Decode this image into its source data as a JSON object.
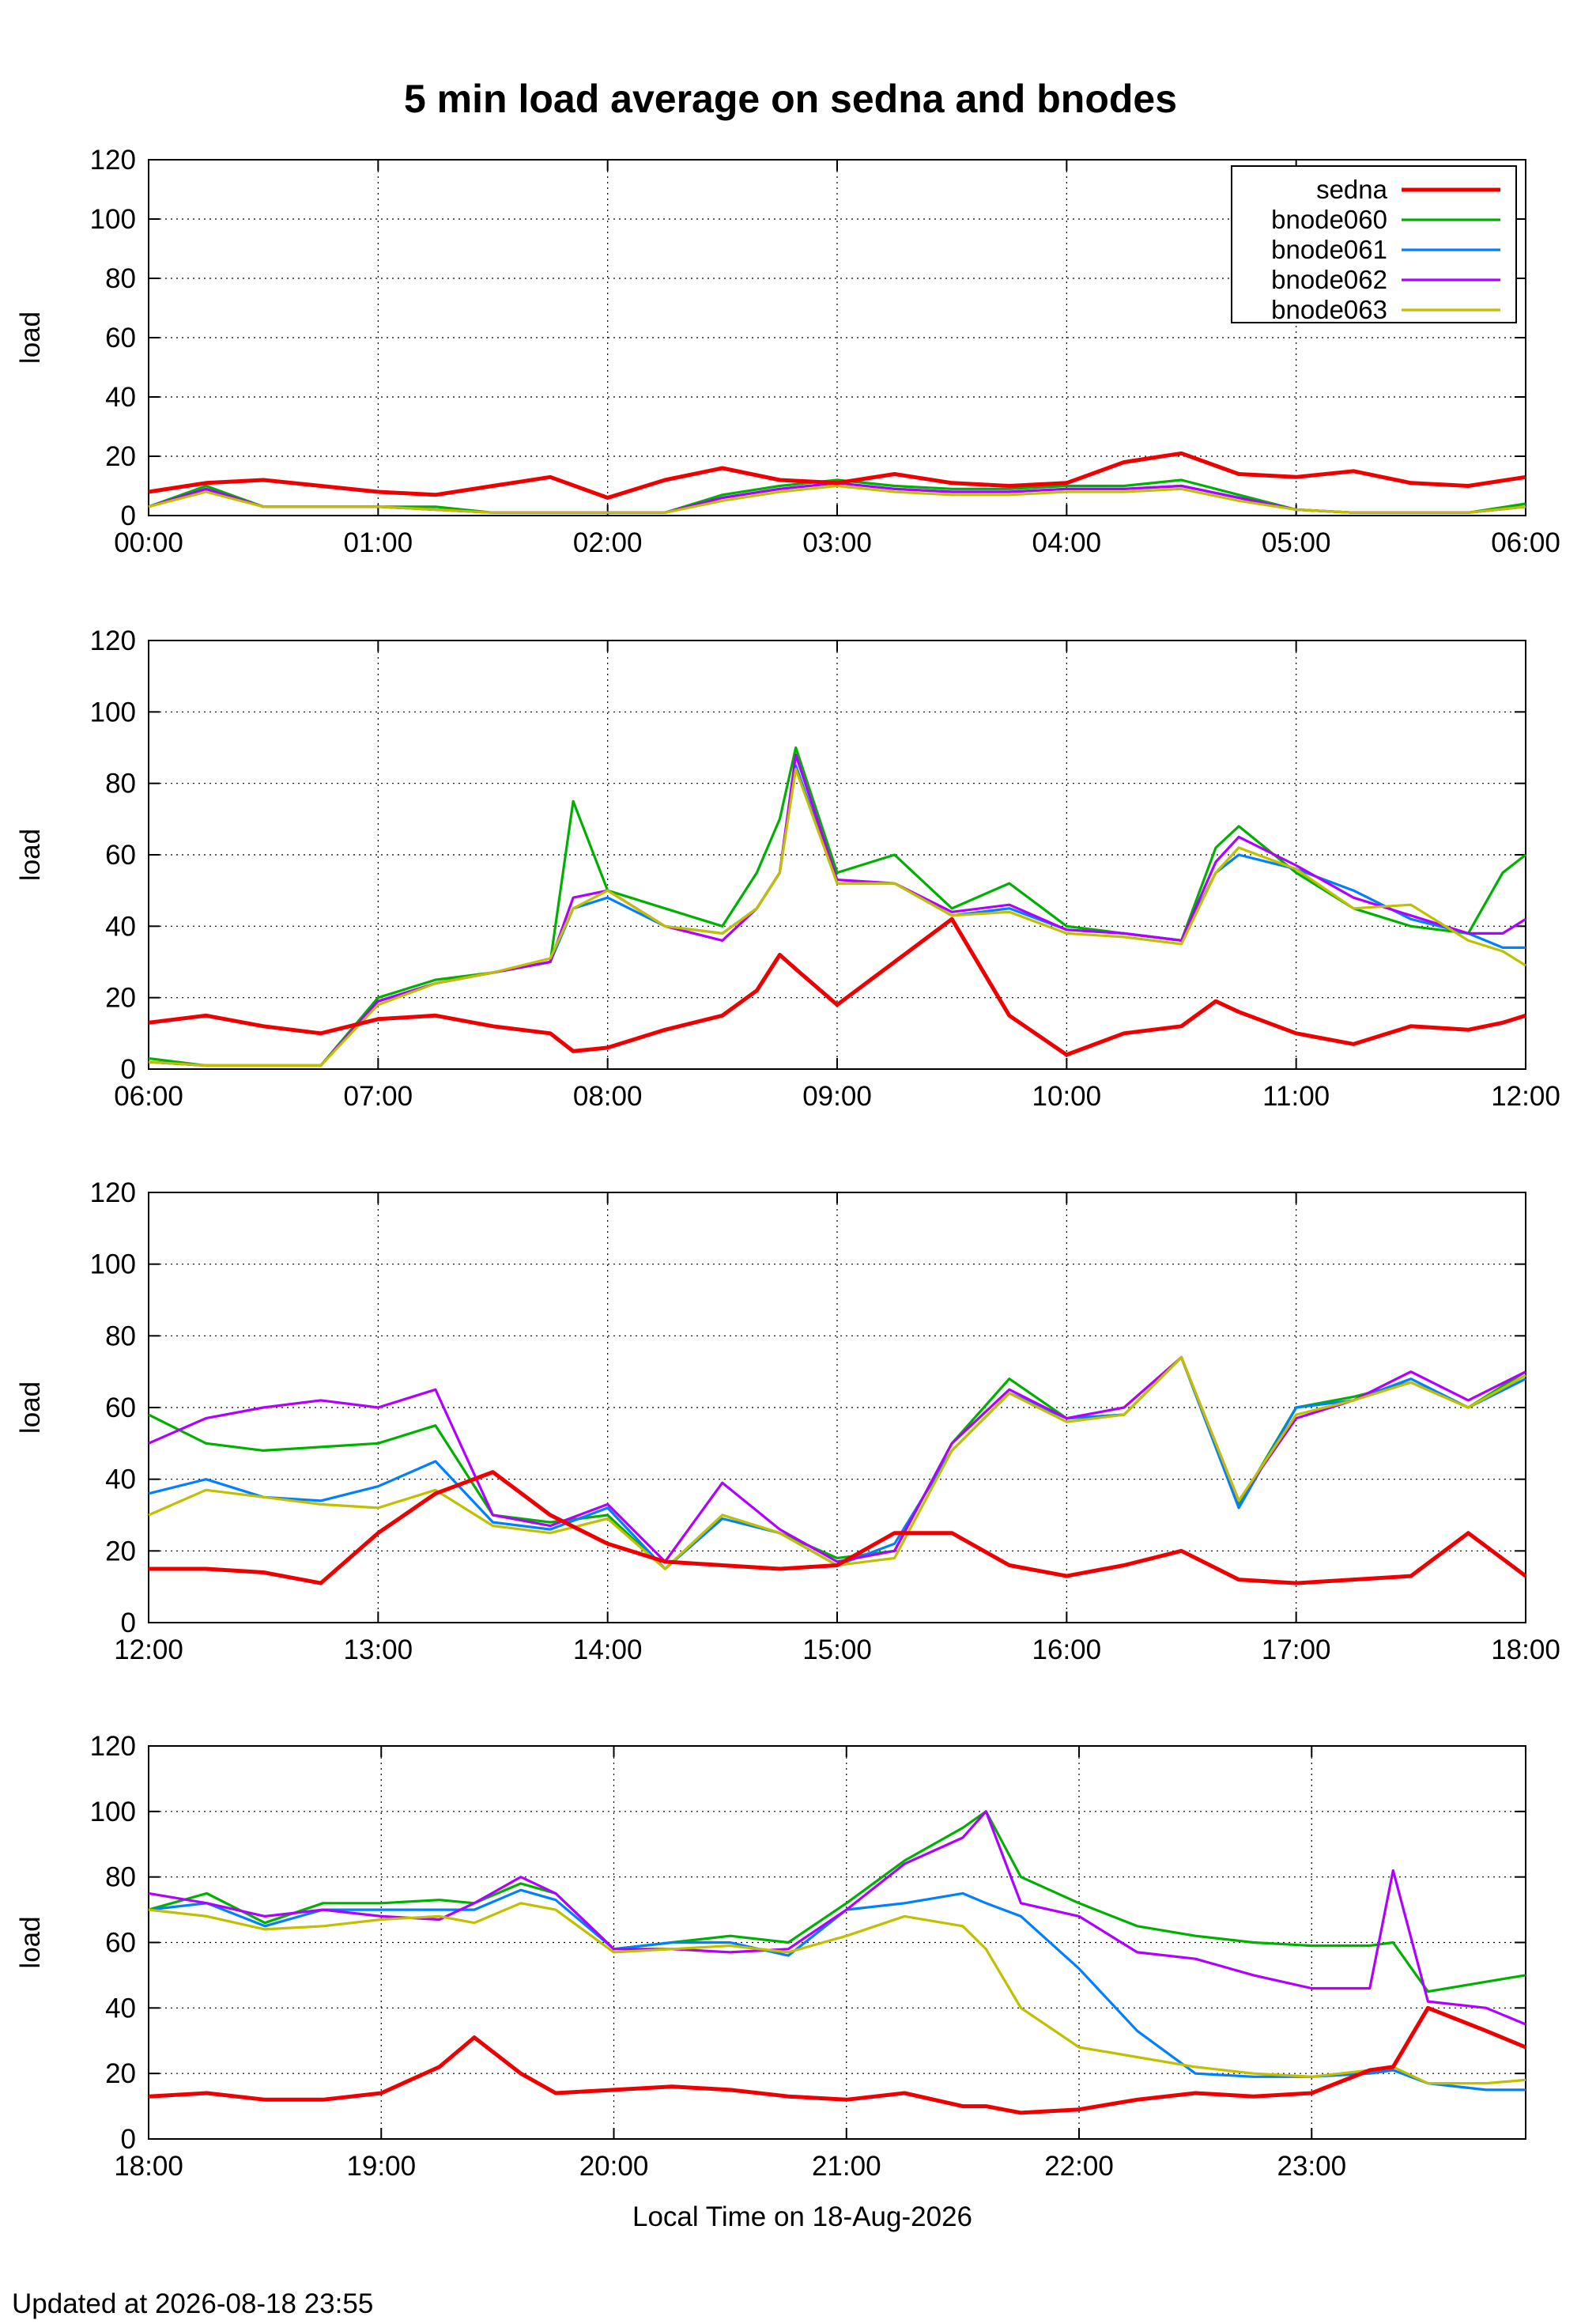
{
  "title": "5 min load average on sedna and bnodes",
  "footer": "Updated at 2026-08-18 23:55",
  "chart_data": {
    "type": "line",
    "title": "5 min load average on sedna and bnodes",
    "ylabel": "load",
    "xlabel": "Local Time on 18-Aug-2026",
    "ylim": [
      0,
      120
    ],
    "yticks": [
      0,
      20,
      40,
      60,
      80,
      100,
      120
    ],
    "grid": true,
    "legend": "top-right",
    "series_colors": {
      "sedna": "#ee0000",
      "bnode060": "#00b000",
      "bnode061": "#0080ff",
      "bnode062": "#b000ff",
      "bnode063": "#c0c000"
    },
    "panels": [
      {
        "xticks": [
          "00:00",
          "01:00",
          "02:00",
          "03:00",
          "04:00",
          "05:00",
          "06:00"
        ],
        "xlim": [
          0,
          6
        ],
        "x": [
          0,
          0.25,
          0.5,
          0.75,
          1,
          1.25,
          1.5,
          1.75,
          2,
          2.25,
          2.5,
          2.75,
          3,
          3.25,
          3.5,
          3.75,
          4,
          4.25,
          4.5,
          4.75,
          5,
          5.25,
          5.5,
          5.75,
          6
        ],
        "series": [
          {
            "name": "sedna",
            "values": [
              8,
              11,
              12,
              10,
              8,
              7,
              10,
              13,
              6,
              12,
              16,
              12,
              11,
              14,
              11,
              10,
              11,
              18,
              21,
              14,
              13,
              15,
              11,
              10,
              13
            ]
          },
          {
            "name": "bnode060",
            "values": [
              3,
              10,
              3,
              3,
              3,
              3,
              1,
              1,
              1,
              1,
              7,
              10,
              12,
              10,
              9,
              9,
              10,
              10,
              12,
              7,
              2,
              1,
              1,
              1,
              4
            ]
          },
          {
            "name": "bnode061",
            "values": [
              3,
              9,
              3,
              3,
              3,
              2,
              1,
              1,
              1,
              1,
              6,
              9,
              11,
              9,
              8,
              8,
              9,
              9,
              10,
              6,
              2,
              1,
              1,
              1,
              3
            ]
          },
          {
            "name": "bnode062",
            "values": [
              3,
              9,
              3,
              3,
              3,
              2,
              1,
              1,
              1,
              1,
              6,
              9,
              11,
              9,
              8,
              8,
              9,
              9,
              10,
              6,
              2,
              1,
              1,
              1,
              3
            ]
          },
          {
            "name": "bnode063",
            "values": [
              3,
              8,
              3,
              3,
              3,
              2,
              1,
              1,
              1,
              1,
              5,
              8,
              10,
              8,
              7,
              7,
              8,
              8,
              9,
              5,
              2,
              1,
              1,
              1,
              3
            ]
          }
        ]
      },
      {
        "xticks": [
          "06:00",
          "07:00",
          "08:00",
          "09:00",
          "10:00",
          "11:00",
          "12:00"
        ],
        "xlim": [
          6,
          12
        ],
        "x": [
          6,
          6.25,
          6.5,
          6.75,
          7,
          7.25,
          7.5,
          7.75,
          7.85,
          8,
          8.25,
          8.5,
          8.65,
          8.75,
          8.82,
          9,
          9.25,
          9.5,
          9.75,
          10,
          10.25,
          10.5,
          10.65,
          10.75,
          11,
          11.25,
          11.5,
          11.75,
          11.9,
          12
        ],
        "series": [
          {
            "name": "sedna",
            "values": [
              13,
              15,
              12,
              10,
              14,
              15,
              12,
              10,
              5,
              6,
              11,
              15,
              22,
              32,
              28,
              18,
              30,
              42,
              15,
              4,
              10,
              12,
              19,
              16,
              10,
              7,
              12,
              11,
              13,
              15
            ]
          },
          {
            "name": "bnode060",
            "values": [
              3,
              1,
              1,
              1,
              20,
              25,
              27,
              30,
              75,
              50,
              45,
              40,
              55,
              70,
              90,
              55,
              60,
              45,
              52,
              40,
              38,
              36,
              62,
              68,
              55,
              45,
              40,
              38,
              55,
              60
            ]
          },
          {
            "name": "bnode061",
            "values": [
              2,
              1,
              1,
              1,
              19,
              24,
              27,
              30,
              45,
              48,
              40,
              38,
              45,
              55,
              85,
              52,
              52,
              43,
              45,
              39,
              38,
              36,
              55,
              60,
              56,
              50,
              42,
              38,
              34,
              34
            ]
          },
          {
            "name": "bnode062",
            "values": [
              2,
              1,
              1,
              1,
              19,
              24,
              27,
              30,
              48,
              50,
              40,
              36,
              45,
              55,
              88,
              53,
              52,
              44,
              46,
              39,
              38,
              36,
              58,
              65,
              57,
              48,
              43,
              38,
              38,
              42
            ]
          },
          {
            "name": "bnode063",
            "values": [
              2,
              1,
              1,
              1,
              18,
              24,
              27,
              31,
              45,
              50,
              40,
              38,
              45,
              55,
              84,
              52,
              52,
              43,
              44,
              38,
              37,
              35,
              55,
              62,
              56,
              45,
              46,
              36,
              33,
              29
            ]
          }
        ]
      },
      {
        "xticks": [
          "12:00",
          "13:00",
          "14:00",
          "15:00",
          "16:00",
          "17:00",
          "18:00"
        ],
        "xlim": [
          12,
          18
        ],
        "x": [
          12,
          12.25,
          12.5,
          12.75,
          13,
          13.25,
          13.5,
          13.75,
          14,
          14.25,
          14.5,
          14.75,
          15,
          15.25,
          15.5,
          15.75,
          16,
          16.25,
          16.5,
          16.75,
          17,
          17.25,
          17.5,
          17.75,
          18
        ],
        "series": [
          {
            "name": "sedna",
            "values": [
              15,
              15,
              14,
              11,
              25,
              36,
              42,
              30,
              22,
              17,
              16,
              15,
              16,
              25,
              25,
              16,
              13,
              16,
              20,
              12,
              11,
              12,
              13,
              25,
              13
            ]
          },
          {
            "name": "bnode060",
            "values": [
              58,
              50,
              48,
              49,
              50,
              55,
              30,
              28,
              30,
              15,
              30,
              25,
              18,
              20,
              50,
              68,
              57,
              58,
              74,
              33,
              60,
              63,
              67,
              60,
              70
            ]
          },
          {
            "name": "bnode061",
            "values": [
              36,
              40,
              35,
              34,
              38,
              45,
              28,
              26,
              32,
              15,
              29,
              25,
              16,
              22,
              48,
              64,
              57,
              58,
              74,
              32,
              60,
              62,
              68,
              60,
              68
            ]
          },
          {
            "name": "bnode062",
            "values": [
              50,
              57,
              60,
              62,
              60,
              65,
              30,
              27,
              33,
              17,
              39,
              26,
              17,
              20,
              50,
              65,
              57,
              60,
              74,
              34,
              57,
              62,
              70,
              62,
              70
            ]
          },
          {
            "name": "bnode063",
            "values": [
              30,
              37,
              35,
              33,
              32,
              37,
              27,
              25,
              29,
              15,
              30,
              25,
              16,
              18,
              48,
              64,
              56,
              58,
              74,
              34,
              58,
              62,
              67,
              60,
              69
            ]
          }
        ]
      },
      {
        "xticks": [
          "18:00",
          "19:00",
          "20:00",
          "21:00",
          "22:00",
          "23:00"
        ],
        "xlim": [
          18,
          23.92
        ],
        "x": [
          18,
          18.25,
          18.5,
          18.75,
          19,
          19.25,
          19.4,
          19.6,
          19.75,
          20,
          20.25,
          20.5,
          20.75,
          21,
          21.25,
          21.5,
          21.6,
          21.75,
          22,
          22.25,
          22.5,
          22.75,
          23,
          23.25,
          23.35,
          23.5,
          23.75,
          23.92
        ],
        "series": [
          {
            "name": "sedna",
            "values": [
              13,
              14,
              12,
              12,
              14,
              22,
              31,
              20,
              14,
              15,
              16,
              15,
              13,
              12,
              14,
              10,
              10,
              8,
              9,
              12,
              14,
              13,
              14,
              21,
              22,
              40,
              33,
              28
            ]
          },
          {
            "name": "bnode060",
            "values": [
              70,
              75,
              66,
              72,
              72,
              73,
              72,
              78,
              75,
              58,
              60,
              62,
              60,
              72,
              85,
              95,
              100,
              80,
              72,
              65,
              62,
              60,
              59,
              59,
              60,
              45,
              48,
              50
            ]
          },
          {
            "name": "bnode061",
            "values": [
              70,
              72,
              65,
              70,
              70,
              70,
              70,
              76,
              73,
              58,
              60,
              60,
              56,
              70,
              72,
              75,
              72,
              68,
              52,
              33,
              20,
              19,
              19,
              20,
              21,
              17,
              15,
              15
            ]
          },
          {
            "name": "bnode062",
            "values": [
              75,
              72,
              68,
              70,
              68,
              67,
              72,
              80,
              75,
              58,
              58,
              57,
              58,
              70,
              84,
              92,
              100,
              72,
              68,
              57,
              55,
              50,
              46,
              46,
              82,
              42,
              40,
              35
            ]
          },
          {
            "name": "bnode063",
            "values": [
              70,
              68,
              64,
              65,
              67,
              68,
              66,
              72,
              70,
              57,
              58,
              59,
              57,
              62,
              68,
              65,
              58,
              40,
              28,
              25,
              22,
              20,
              19,
              21,
              22,
              17,
              17,
              18
            ]
          }
        ]
      }
    ]
  }
}
